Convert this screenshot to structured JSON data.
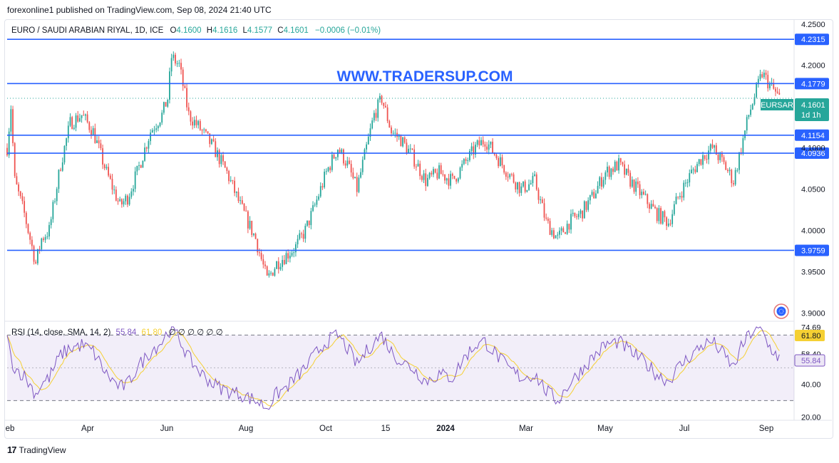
{
  "header": {
    "publish_text": "forexonline1 published on TradingView.com, Sep 08, 2024 21:40 UTC"
  },
  "legend": {
    "symbol": "EURO / SAUDI ARABIAN RIYAL, 1D, ICE",
    "o_label": "O",
    "o": "4.1600",
    "h_label": "H",
    "h": "4.1616",
    "l_label": "L",
    "l": "4.1577",
    "c_label": "C",
    "c": "4.1601",
    "change": "−0.0006 (−0.01%)"
  },
  "watermark": "WWW.TRADERSUP.COM",
  "footer": {
    "brand": "TradingView"
  },
  "colors": {
    "up": "#26a69a",
    "down": "#ef5350",
    "level": "#2962ff",
    "rsi": "#7e57c2",
    "rsi_ma": "#f5d033",
    "badge_last": "#26a69a"
  },
  "chart_data": [
    {
      "type": "candlestick",
      "symbol": "EURSAR",
      "timeframe": "1D",
      "x_ticks": [
        "eb",
        "Apr",
        "Jun",
        "Aug",
        "Oct",
        "15",
        "2024",
        "Mar",
        "May",
        "Jul",
        "Sep"
      ],
      "y_ticks": [
        "4.2500",
        "4.2000",
        "4.0500",
        "4.0000",
        "3.9500",
        "3.9000"
      ],
      "y_tick_partial": "4.1000",
      "ylim": [
        3.89,
        4.255
      ],
      "levels": [
        "4.2315",
        "4.1779",
        "4.1154",
        "4.0936",
        "3.9759"
      ],
      "last_price": "4.1601",
      "countdown": "1d 1h",
      "badge_symbol": "EURSAR",
      "anchors": [
        [
          0,
          4.1
        ],
        [
          4,
          4.15
        ],
        [
          8,
          4.06
        ],
        [
          18,
          4.02
        ],
        [
          30,
          3.96
        ],
        [
          36,
          3.99
        ],
        [
          44,
          4.0
        ],
        [
          56,
          4.08
        ],
        [
          66,
          4.13
        ],
        [
          78,
          4.14
        ],
        [
          90,
          4.12
        ],
        [
          104,
          4.07
        ],
        [
          118,
          4.03
        ],
        [
          126,
          4.04
        ],
        [
          136,
          4.07
        ],
        [
          150,
          4.12
        ],
        [
          162,
          4.14
        ],
        [
          168,
          4.16
        ],
        [
          172,
          4.21
        ],
        [
          180,
          4.2
        ],
        [
          190,
          4.14
        ],
        [
          204,
          4.12
        ],
        [
          216,
          4.1
        ],
        [
          230,
          4.07
        ],
        [
          244,
          4.03
        ],
        [
          260,
          3.99
        ],
        [
          272,
          3.94
        ],
        [
          282,
          3.96
        ],
        [
          292,
          3.97
        ],
        [
          302,
          3.98
        ],
        [
          312,
          4.0
        ],
        [
          322,
          4.03
        ],
        [
          334,
          4.07
        ],
        [
          346,
          4.1
        ],
        [
          356,
          4.08
        ],
        [
          366,
          4.05
        ],
        [
          376,
          4.1
        ],
        [
          384,
          4.14
        ],
        [
          392,
          4.16
        ],
        [
          402,
          4.12
        ],
        [
          412,
          4.11
        ],
        [
          424,
          4.09
        ],
        [
          438,
          4.06
        ],
        [
          452,
          4.07
        ],
        [
          466,
          4.06
        ],
        [
          478,
          4.08
        ],
        [
          490,
          4.1
        ],
        [
          500,
          4.11
        ],
        [
          512,
          4.09
        ],
        [
          524,
          4.07
        ],
        [
          538,
          4.05
        ],
        [
          552,
          4.06
        ],
        [
          564,
          4.01
        ],
        [
          576,
          3.99
        ],
        [
          588,
          4.01
        ],
        [
          600,
          4.02
        ],
        [
          612,
          4.04
        ],
        [
          626,
          4.07
        ],
        [
          640,
          4.08
        ],
        [
          652,
          4.06
        ],
        [
          666,
          4.04
        ],
        [
          680,
          4.02
        ],
        [
          692,
          4.01
        ],
        [
          702,
          4.04
        ],
        [
          716,
          4.07
        ],
        [
          728,
          4.09
        ],
        [
          738,
          4.1
        ],
        [
          750,
          4.08
        ],
        [
          760,
          4.06
        ],
        [
          768,
          4.1
        ],
        [
          776,
          4.14
        ],
        [
          784,
          4.17
        ],
        [
          790,
          4.19
        ],
        [
          796,
          4.18
        ],
        [
          802,
          4.17
        ],
        [
          808,
          4.16
        ]
      ]
    },
    {
      "type": "line",
      "name": "RSI (14, close, SMA, 14, 2)",
      "label_name": "RSI",
      "label_params": "(14, close, SMA, 14, 2)",
      "rsi_value": "55.84",
      "rsi_ma_value": "61.80",
      "label_icons": "∅ ∅ ∅ ∅ ∅ ∅",
      "y_ticks": [
        "74.69",
        "58.40",
        "40.00",
        "20.00"
      ],
      "band_upper": 70,
      "band_lower": 30,
      "ylim": [
        18,
        78
      ],
      "anchors": [
        [
          0,
          68
        ],
        [
          4,
          56
        ],
        [
          8,
          50
        ],
        [
          18,
          45
        ],
        [
          30,
          34
        ],
        [
          36,
          40
        ],
        [
          44,
          44
        ],
        [
          56,
          58
        ],
        [
          66,
          62
        ],
        [
          78,
          64
        ],
        [
          90,
          60
        ],
        [
          104,
          46
        ],
        [
          118,
          38
        ],
        [
          126,
          40
        ],
        [
          136,
          50
        ],
        [
          150,
          60
        ],
        [
          162,
          66
        ],
        [
          168,
          72
        ],
        [
          172,
          74
        ],
        [
          180,
          68
        ],
        [
          190,
          56
        ],
        [
          204,
          46
        ],
        [
          216,
          40
        ],
        [
          230,
          36
        ],
        [
          244,
          34
        ],
        [
          260,
          30
        ],
        [
          272,
          26
        ],
        [
          282,
          34
        ],
        [
          292,
          38
        ],
        [
          302,
          44
        ],
        [
          312,
          50
        ],
        [
          322,
          58
        ],
        [
          334,
          66
        ],
        [
          346,
          70
        ],
        [
          356,
          62
        ],
        [
          366,
          52
        ],
        [
          376,
          60
        ],
        [
          384,
          66
        ],
        [
          392,
          70
        ],
        [
          402,
          60
        ],
        [
          412,
          54
        ],
        [
          424,
          50
        ],
        [
          438,
          42
        ],
        [
          452,
          46
        ],
        [
          466,
          44
        ],
        [
          478,
          56
        ],
        [
          490,
          64
        ],
        [
          500,
          66
        ],
        [
          512,
          58
        ],
        [
          524,
          50
        ],
        [
          538,
          44
        ],
        [
          552,
          46
        ],
        [
          564,
          36
        ],
        [
          576,
          30
        ],
        [
          588,
          40
        ],
        [
          600,
          48
        ],
        [
          612,
          56
        ],
        [
          626,
          64
        ],
        [
          640,
          66
        ],
        [
          652,
          60
        ],
        [
          666,
          54
        ],
        [
          680,
          46
        ],
        [
          692,
          42
        ],
        [
          702,
          50
        ],
        [
          716,
          58
        ],
        [
          728,
          64
        ],
        [
          738,
          66
        ],
        [
          750,
          58
        ],
        [
          760,
          50
        ],
        [
          768,
          62
        ],
        [
          776,
          70
        ],
        [
          784,
          74
        ],
        [
          790,
          72
        ],
        [
          796,
          64
        ],
        [
          802,
          60
        ],
        [
          808,
          56
        ]
      ]
    }
  ]
}
